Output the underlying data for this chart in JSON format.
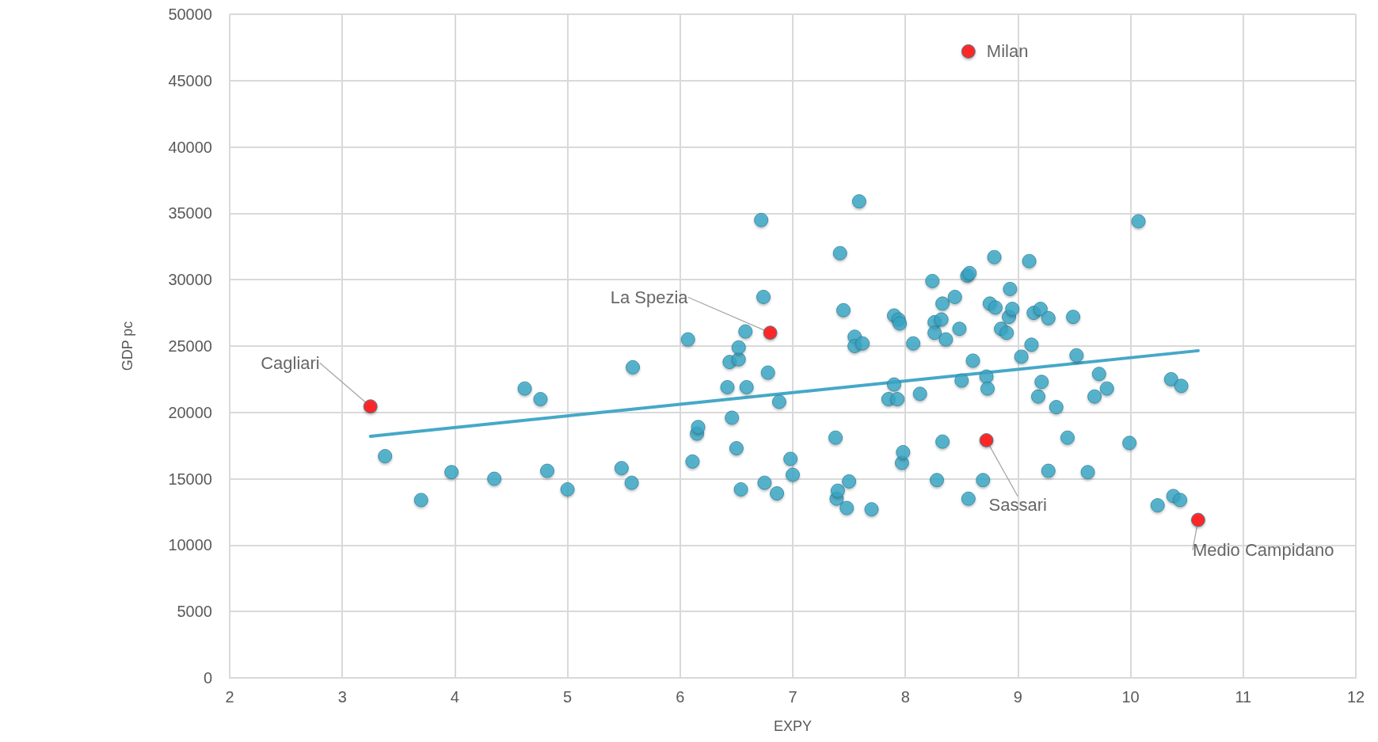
{
  "chart_data": {
    "type": "scatter",
    "xlabel": "EXPY",
    "ylabel": "GDP pc",
    "xlim": [
      2,
      12
    ],
    "xticks": [
      2,
      3,
      4,
      5,
      6,
      7,
      8,
      9,
      10,
      11,
      12
    ],
    "ylim": [
      0,
      50000
    ],
    "yticks": [
      0,
      5000,
      10000,
      15000,
      20000,
      25000,
      30000,
      35000,
      40000,
      45000,
      50000
    ],
    "grid": true,
    "marker": "circle",
    "series": [
      {
        "color": "#3aa6c6",
        "x": [
          3.38,
          3.7,
          3.97,
          4.35,
          4.62,
          4.76,
          4.82,
          5.0,
          5.48,
          5.57,
          5.58,
          6.07,
          6.11,
          6.15,
          6.16,
          6.42,
          6.44,
          6.46,
          6.5,
          6.52,
          6.52,
          6.54,
          6.58,
          6.59,
          6.72,
          6.74,
          6.75,
          6.78,
          6.86,
          6.88,
          6.98,
          7.0,
          7.38,
          7.39,
          7.4,
          7.42,
          7.45,
          7.48,
          7.5,
          7.55,
          7.55,
          7.59,
          7.62,
          7.7,
          7.85,
          7.9,
          7.9,
          7.93,
          7.94,
          7.95,
          7.97,
          7.98,
          8.07,
          8.13,
          8.24,
          8.26,
          8.26,
          8.28,
          8.32,
          8.33,
          8.33,
          8.36,
          8.44,
          8.48,
          8.5,
          8.55,
          8.57,
          8.56,
          8.6,
          8.69,
          8.72,
          8.73,
          8.75,
          8.8,
          8.79,
          8.85,
          8.9,
          8.92,
          8.93,
          8.95,
          9.03,
          9.1,
          9.12,
          9.14,
          9.18,
          9.2,
          9.21,
          9.27,
          9.27,
          9.34,
          9.44,
          9.49,
          9.52,
          9.62,
          9.68,
          9.72,
          9.79,
          9.99,
          10.07,
          10.24,
          10.36,
          10.38,
          10.44,
          10.45
        ],
        "values": [
          16700,
          13400,
          15500,
          15000,
          21800,
          21000,
          15600,
          14200,
          15800,
          14700,
          23400,
          25500,
          16300,
          18400,
          18900,
          21900,
          23800,
          19600,
          17300,
          24000,
          24900,
          14200,
          26100,
          21900,
          34500,
          28700,
          14700,
          23000,
          13900,
          20800,
          16500,
          15300,
          18100,
          13500,
          14100,
          32000,
          27700,
          12800,
          14800,
          25700,
          25000,
          35900,
          25200,
          12700,
          21000,
          27300,
          22100,
          21000,
          27000,
          26700,
          16200,
          17000,
          25200,
          21400,
          29900,
          26800,
          26000,
          14900,
          27000,
          28200,
          17800,
          25500,
          28700,
          26300,
          22400,
          30300,
          30500,
          13500,
          23900,
          14900,
          22700,
          21800,
          28200,
          27900,
          31700,
          26300,
          26000,
          27200,
          29300,
          27800,
          24200,
          31400,
          25100,
          27500,
          21200,
          27800,
          22300,
          15600,
          27100,
          20400,
          18100,
          27200,
          24300,
          15500,
          21200,
          22900,
          21800,
          17700,
          34400,
          13000,
          22500,
          13700,
          13400,
          22000
        ]
      },
      {
        "color": "#ff0000",
        "x": [
          3.25,
          6.8,
          8.56,
          8.72,
          10.6
        ],
        "values": [
          20450,
          26000,
          47200,
          17900,
          11900
        ]
      },
      {
        "type": "line",
        "color": "#46a8c8",
        "marker": "none",
        "x": [
          3.25,
          10.6
        ],
        "values": [
          18200,
          24650
        ]
      }
    ],
    "annotations": [
      {
        "text": "Cagliari",
        "x": 3.25,
        "y": 20450
      },
      {
        "text": "La Spezia",
        "x": 6.8,
        "y": 26000
      },
      {
        "text": "Milan",
        "x": 8.56,
        "y": 47200
      },
      {
        "text": "Sassari",
        "x": 8.72,
        "y": 17900
      },
      {
        "text": "Medio Campidano",
        "x": 10.6,
        "y": 11900
      }
    ]
  }
}
